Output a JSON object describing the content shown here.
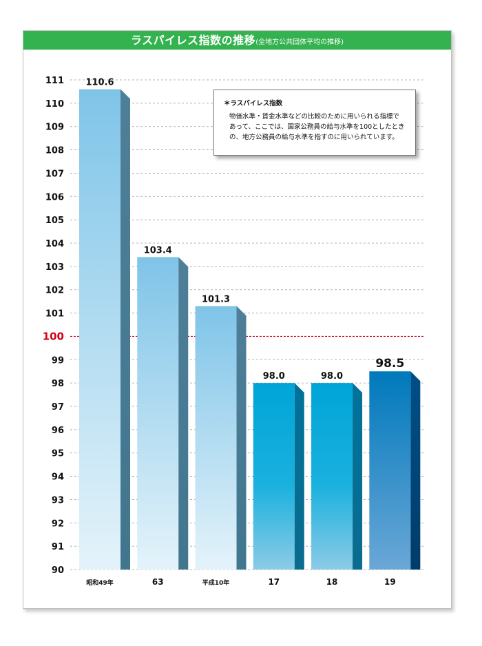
{
  "title": {
    "main": "ラスパイレス指数の推移",
    "sub": "(全地方公共団体平均の推移)"
  },
  "note": {
    "title": "＊ラスパイレス指数",
    "body": "物価水準・賃金水準などの比較のために用いられる指標で あって、ここでは、国家公務員の給与水準を100としたときの、地方公務員の給与水準を指すのに用いられています。"
  },
  "colors": {
    "title_bar": "#34b24f",
    "reference_line": "#d0021b",
    "bar_light": "#82c6e9",
    "bar_mid": "#0aa6d8",
    "bar_dark": "#0077b6"
  },
  "chart_data": {
    "type": "bar",
    "categories": [
      "昭和49年",
      "63",
      "平成10年",
      "17",
      "18",
      "19"
    ],
    "values": [
      110.6,
      103.4,
      101.3,
      98.0,
      98.0,
      98.5
    ],
    "value_labels": [
      "110.6",
      "103.4",
      "101.3",
      "98.0",
      "98.0",
      "98.5"
    ],
    "ylim": [
      90,
      111
    ],
    "yticks": [
      "90",
      "91",
      "92",
      "93",
      "94",
      "95",
      "96",
      "97",
      "98",
      "99",
      "100",
      "101",
      "102",
      "103",
      "104",
      "105",
      "106",
      "107",
      "108",
      "109",
      "110",
      "111"
    ],
    "reference_line": 100,
    "grid": true,
    "xlabel": "",
    "ylabel": ""
  }
}
